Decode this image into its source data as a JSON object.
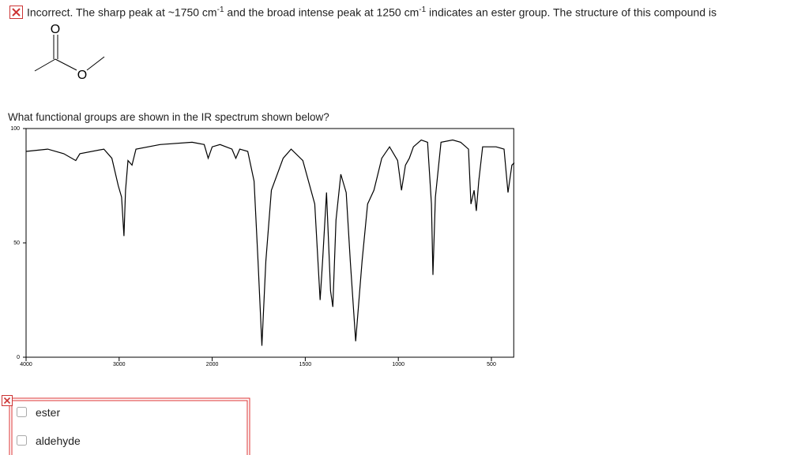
{
  "feedback": {
    "parts": [
      "Incorrect. The sharp peak at ~1750 cm",
      "-1",
      " and the broad intense peak at 1250 cm",
      "-1",
      " indicates an ester group. The structure of this compound is"
    ],
    "structure_atoms": [
      "O",
      "O"
    ]
  },
  "question": {
    "text": "What functional groups are shown in the IR spectrum shown below?"
  },
  "options": [
    "ester",
    "aldehyde"
  ],
  "chart_data": {
    "type": "line",
    "color": "#000000",
    "x": [
      4000,
      3767,
      3595,
      3466,
      3422,
      3164,
      3078,
      3009,
      2974,
      2948,
      2931,
      2905,
      2862,
      2819,
      2560,
      2216,
      2086,
      2043,
      2000,
      1958,
      1894,
      1873,
      1852,
      1809,
      1775,
      1754,
      1733,
      1712,
      1682,
      1619,
      1576,
      1513,
      1449,
      1420,
      1407,
      1386,
      1364,
      1352,
      1335,
      1309,
      1280,
      1258,
      1229,
      1195,
      1165,
      1131,
      1089,
      1047,
      1004,
      983,
      962,
      941,
      919,
      877,
      843,
      822,
      814,
      801,
      771,
      708,
      665,
      623,
      610,
      593,
      581,
      568,
      547,
      475,
      432,
      411,
      390,
      377
    ],
    "values": [
      90,
      91,
      89,
      86,
      89,
      91,
      87,
      75,
      70,
      53,
      73,
      86,
      84,
      91,
      93,
      94,
      93,
      87,
      92,
      93,
      91,
      87,
      91,
      90,
      77,
      42,
      5,
      42,
      73,
      87,
      91,
      86,
      67,
      25,
      42,
      72,
      29,
      22,
      60,
      80,
      72,
      42,
      7,
      42,
      67,
      73,
      87,
      92,
      86,
      73,
      84,
      87,
      92,
      95,
      94,
      67,
      36,
      70,
      94,
      95,
      94,
      91,
      67,
      73,
      64,
      77,
      92,
      92,
      91,
      72,
      84,
      85
    ],
    "xlim": [
      4000,
      380
    ],
    "ylim": [
      0,
      100
    ],
    "xticks": [
      4000,
      3000,
      2000,
      1500,
      1000,
      500
    ],
    "yticks": [
      0,
      50,
      100
    ]
  }
}
